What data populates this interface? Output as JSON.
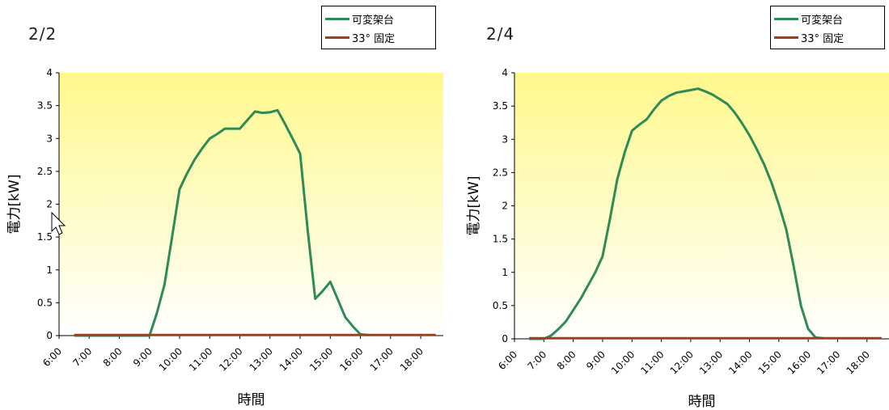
{
  "chart_data": [
    {
      "type": "line",
      "title": "2/2",
      "xlabel": "時間",
      "ylabel": "電力[kW]",
      "ylim": [
        0,
        4
      ],
      "yticks": [
        "0",
        "0.5",
        "1",
        "1.5",
        "2",
        "2.5",
        "3",
        "3.5",
        "4"
      ],
      "x_tick_labels": [
        "6:00",
        "7:00",
        "8:00",
        "9:00",
        "10:00",
        "11:00",
        "12:00",
        "13:00",
        "14:00",
        "15:00",
        "16:00",
        "17:00",
        "18:00"
      ],
      "x_range": [
        6,
        18.75
      ],
      "legend_position": "top-right",
      "series": [
        {
          "name": "可変架台",
          "color": "#2e8b57",
          "x": [
            6.5,
            8.75,
            9.0,
            9.25,
            9.5,
            9.75,
            10.0,
            10.25,
            10.5,
            10.75,
            11.0,
            11.25,
            11.5,
            11.75,
            12.0,
            12.25,
            12.5,
            12.75,
            13.0,
            13.25,
            13.5,
            13.75,
            14.0,
            14.25,
            14.5,
            14.75,
            15.0,
            15.25,
            15.5,
            15.75,
            16.0,
            16.25
          ],
          "y": [
            0,
            0,
            0,
            0.35,
            0.78,
            1.5,
            2.23,
            2.47,
            2.68,
            2.85,
            3.0,
            3.07,
            3.15,
            3.15,
            3.15,
            3.28,
            3.41,
            3.39,
            3.4,
            3.43,
            3.22,
            3.0,
            2.77,
            1.6,
            0.56,
            0.68,
            0.82,
            0.55,
            0.28,
            0.14,
            0.02,
            0.01
          ]
        },
        {
          "name": "33° 固定",
          "color": "#a0401a",
          "x": [
            6.5,
            18.5
          ],
          "y": [
            0.01,
            0.01
          ]
        }
      ]
    },
    {
      "type": "line",
      "title": "2/4",
      "xlabel": "時間",
      "ylabel": "電力[kW]",
      "ylim": [
        0,
        4
      ],
      "yticks": [
        "0",
        "0.5",
        "1",
        "1.5",
        "2",
        "2.5",
        "3",
        "3.5",
        "4"
      ],
      "x_tick_labels": [
        "6:00",
        "7:00",
        "8:00",
        "9:00",
        "10:00",
        "11:00",
        "12:00",
        "13:00",
        "14:00",
        "15:00",
        "16:00",
        "17:00",
        "18:00"
      ],
      "x_range": [
        6,
        18.75
      ],
      "legend_position": "top-right",
      "series": [
        {
          "name": "可変架台",
          "color": "#2e8b57",
          "x": [
            6.5,
            7.0,
            7.25,
            7.5,
            7.75,
            8.0,
            8.25,
            8.5,
            8.75,
            9.0,
            9.25,
            9.5,
            9.75,
            10.0,
            10.25,
            10.5,
            10.75,
            11.0,
            11.25,
            11.5,
            11.75,
            12.0,
            12.25,
            12.5,
            12.75,
            13.0,
            13.25,
            13.5,
            13.75,
            14.0,
            14.25,
            14.5,
            14.75,
            15.0,
            15.25,
            15.5,
            15.75,
            16.0,
            16.25,
            16.5
          ],
          "y": [
            0,
            0,
            0.05,
            0.15,
            0.26,
            0.43,
            0.6,
            0.8,
            1.0,
            1.24,
            1.8,
            2.4,
            2.8,
            3.13,
            3.22,
            3.3,
            3.45,
            3.58,
            3.65,
            3.7,
            3.72,
            3.74,
            3.76,
            3.72,
            3.67,
            3.6,
            3.53,
            3.4,
            3.24,
            3.06,
            2.85,
            2.62,
            2.35,
            2.02,
            1.65,
            1.1,
            0.5,
            0.15,
            0.02,
            0.01
          ]
        },
        {
          "name": "33° 固定",
          "color": "#a0401a",
          "x": [
            6.5,
            18.5
          ],
          "y": [
            0.01,
            0.01
          ]
        }
      ]
    }
  ]
}
